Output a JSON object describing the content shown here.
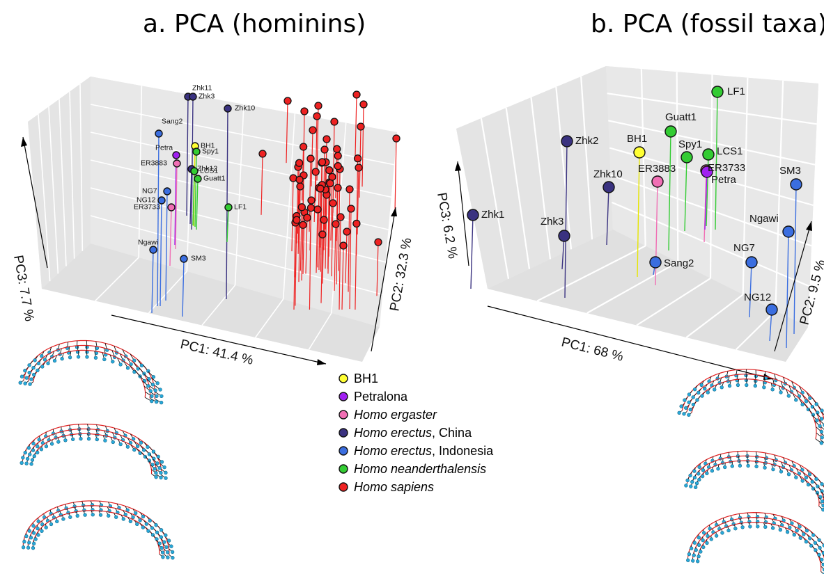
{
  "chart_data": [
    {
      "type": "scatter",
      "subtype": "3d",
      "title": "a. PCA (hominins)",
      "axes": {
        "x": "PC1: 41.4 %",
        "y": "PC2: 32.3 %",
        "z": "PC3: 7.7 %"
      },
      "points": [
        {
          "label": "Zhk11",
          "group": "Homo erectus, China"
        },
        {
          "label": "Zhk3",
          "group": "Homo erectus, China"
        },
        {
          "label": "Zhk10",
          "group": "Homo erectus, China"
        },
        {
          "label": "Zhk12",
          "group": "Homo erectus, China"
        },
        {
          "label": "Sang2",
          "group": "Homo erectus, Indonesia"
        },
        {
          "label": "NG7",
          "group": "Homo erectus, Indonesia"
        },
        {
          "label": "NG12",
          "group": "Homo erectus, Indonesia"
        },
        {
          "label": "Ngawi",
          "group": "Homo erectus, Indonesia"
        },
        {
          "label": "SM3",
          "group": "Homo erectus, Indonesia"
        },
        {
          "label": "BH1",
          "group": "BH1"
        },
        {
          "label": "Petra",
          "group": "Petralona"
        },
        {
          "label": "ER3883",
          "group": "Homo ergaster"
        },
        {
          "label": "ER3733",
          "group": "Homo ergaster"
        },
        {
          "label": "Spy1",
          "group": "Homo neanderthalensis"
        },
        {
          "label": "LCS1",
          "group": "Homo neanderthalensis"
        },
        {
          "label": "Guatt1",
          "group": "Homo neanderthalensis"
        },
        {
          "label": "LF1",
          "group": "Homo neanderthalensis"
        }
      ]
    },
    {
      "type": "scatter",
      "subtype": "3d",
      "title": "b. PCA (fossil taxa)",
      "axes": {
        "x": "PC1: 68 %",
        "y": "PC2: 9.5 %",
        "z": "PC3: 6.2 %"
      },
      "points": [
        {
          "label": "LF1",
          "group": "Homo neanderthalensis"
        },
        {
          "label": "Guatt1",
          "group": "Homo neanderthalensis"
        },
        {
          "label": "Spy1",
          "group": "Homo neanderthalensis"
        },
        {
          "label": "LCS1",
          "group": "Homo neanderthalensis"
        },
        {
          "label": "BH1",
          "group": "BH1"
        },
        {
          "label": "Zhk2",
          "group": "Homo erectus, China"
        },
        {
          "label": "Zhk10",
          "group": "Homo erectus, China"
        },
        {
          "label": "Zhk1",
          "group": "Homo erectus, China"
        },
        {
          "label": "Zhk3",
          "group": "Homo erectus, China"
        },
        {
          "label": "ER3883",
          "group": "Homo ergaster"
        },
        {
          "label": "ER3733",
          "group": "Homo ergaster"
        },
        {
          "label": "Petra",
          "group": "Petralona"
        },
        {
          "label": "SM3",
          "group": "Homo erectus, Indonesia"
        },
        {
          "label": "Ngawi",
          "group": "Homo erectus, Indonesia"
        },
        {
          "label": "NG7",
          "group": "Homo erectus, Indonesia"
        },
        {
          "label": "Sang2",
          "group": "Homo erectus, Indonesia"
        },
        {
          "label": "NG12",
          "group": "Homo erectus, Indonesia"
        }
      ]
    }
  ],
  "legend": {
    "items": [
      {
        "label": "BH1",
        "italic": "",
        "suffix": "",
        "color": "#ffff33"
      },
      {
        "label": "Petralona",
        "italic": "",
        "suffix": "",
        "color": "#a020f0"
      },
      {
        "label": "",
        "italic": "Homo ergaster",
        "suffix": "",
        "color": "#f06fb4"
      },
      {
        "label": "",
        "italic": "Homo erectus",
        "suffix": ", China",
        "color": "#3a3280"
      },
      {
        "label": "",
        "italic": "Homo erectus",
        "suffix": ", Indonesia",
        "color": "#3b6ee0"
      },
      {
        "label": "",
        "italic": "Homo neanderthalensis",
        "suffix": "",
        "color": "#33cc33"
      },
      {
        "label": "",
        "italic": "Homo sapiens",
        "suffix": "",
        "color": "#ee2222"
      }
    ]
  }
}
